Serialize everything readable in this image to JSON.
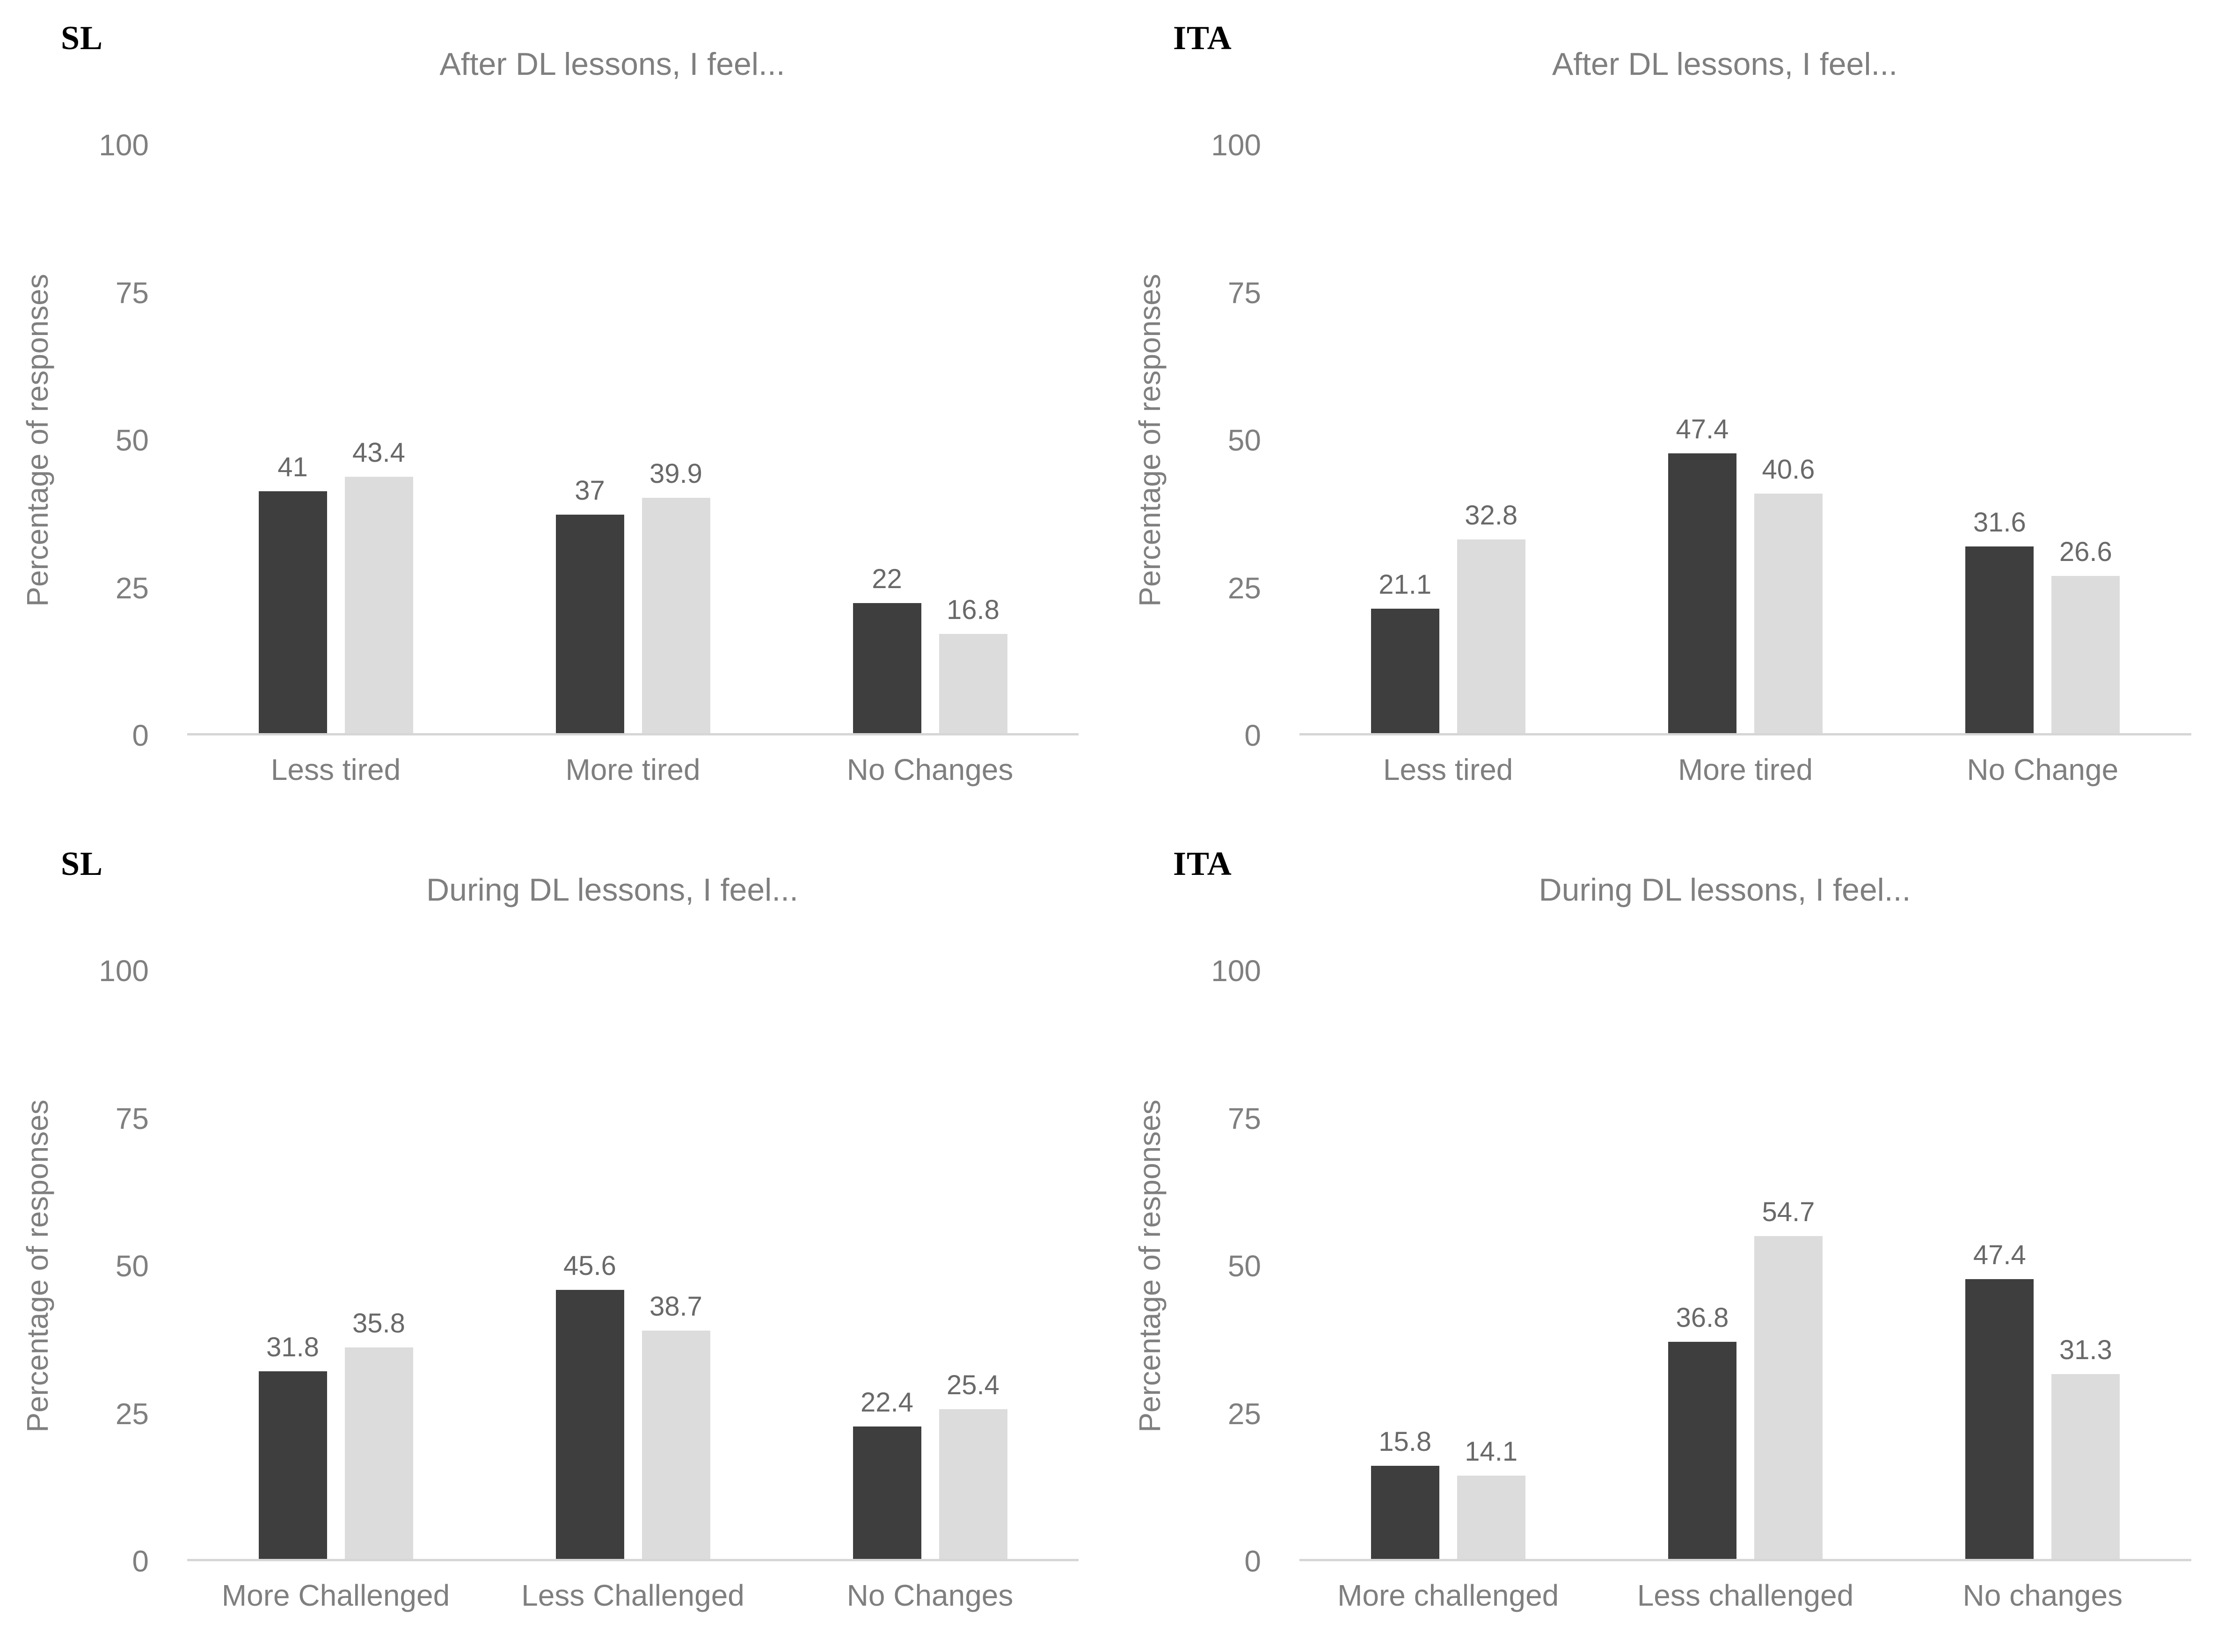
{
  "figure": {
    "description": "Four grouped bar charts in a 2x2 grid comparing SL and ITA student responses about distance learning (DL) lessons",
    "background": "#ffffff"
  },
  "style": {
    "dark_bar_color": "#3e3e3e",
    "light_bar_color": "#dcdcdc",
    "axis_text_color": "#7f7f7f",
    "title_text_color": "#7f7f7f",
    "data_label_color": "#696969",
    "baseline_color": "#d6d6d6",
    "panel_label_color": "#000000"
  },
  "chart_data": [
    {
      "type": "bar",
      "panel_label": "SL",
      "title": "After DL lessons, I feel...",
      "ylabel": "Percentage of responses",
      "xlabel": "",
      "ylim": [
        0,
        100
      ],
      "yticks": [
        100,
        75,
        50,
        25,
        0
      ],
      "grid": false,
      "legend": "none",
      "categories": [
        "Less tired",
        "More tired",
        "No Changes"
      ],
      "series": [
        {
          "name": "dark",
          "values": [
            41,
            37,
            22
          ]
        },
        {
          "name": "light",
          "values": [
            43.4,
            39.9,
            16.8
          ]
        }
      ]
    },
    {
      "type": "bar",
      "panel_label": "ITA",
      "title": "After DL lessons, I feel...",
      "ylabel": "Percentage of responses",
      "xlabel": "",
      "ylim": [
        0,
        100
      ],
      "yticks": [
        100,
        75,
        50,
        25,
        0
      ],
      "grid": false,
      "legend": "none",
      "categories": [
        "Less tired",
        "More tired",
        "No Change"
      ],
      "series": [
        {
          "name": "dark",
          "values": [
            21.1,
            47.4,
            31.6
          ]
        },
        {
          "name": "light",
          "values": [
            32.8,
            40.6,
            26.6
          ]
        }
      ]
    },
    {
      "type": "bar",
      "panel_label": "SL",
      "title": "During DL lessons, I feel...",
      "ylabel": "Percentage of responses",
      "xlabel": "",
      "ylim": [
        0,
        100
      ],
      "yticks": [
        100,
        75,
        50,
        25,
        0
      ],
      "grid": false,
      "legend": "none",
      "categories": [
        "More Challenged",
        "Less Challenged",
        "No Changes"
      ],
      "series": [
        {
          "name": "dark",
          "values": [
            31.8,
            45.6,
            22.4
          ]
        },
        {
          "name": "light",
          "values": [
            35.8,
            38.7,
            25.4
          ]
        }
      ]
    },
    {
      "type": "bar",
      "panel_label": "ITA",
      "title": "During DL lessons, I feel...",
      "ylabel": "Percentage of responses",
      "xlabel": "",
      "ylim": [
        0,
        100
      ],
      "yticks": [
        100,
        75,
        50,
        25,
        0
      ],
      "grid": false,
      "legend": "none",
      "categories": [
        "More challenged",
        "Less challenged",
        "No changes"
      ],
      "series": [
        {
          "name": "dark",
          "values": [
            15.8,
            36.8,
            47.4
          ]
        },
        {
          "name": "light",
          "values": [
            14.1,
            54.7,
            31.3
          ]
        }
      ]
    }
  ]
}
